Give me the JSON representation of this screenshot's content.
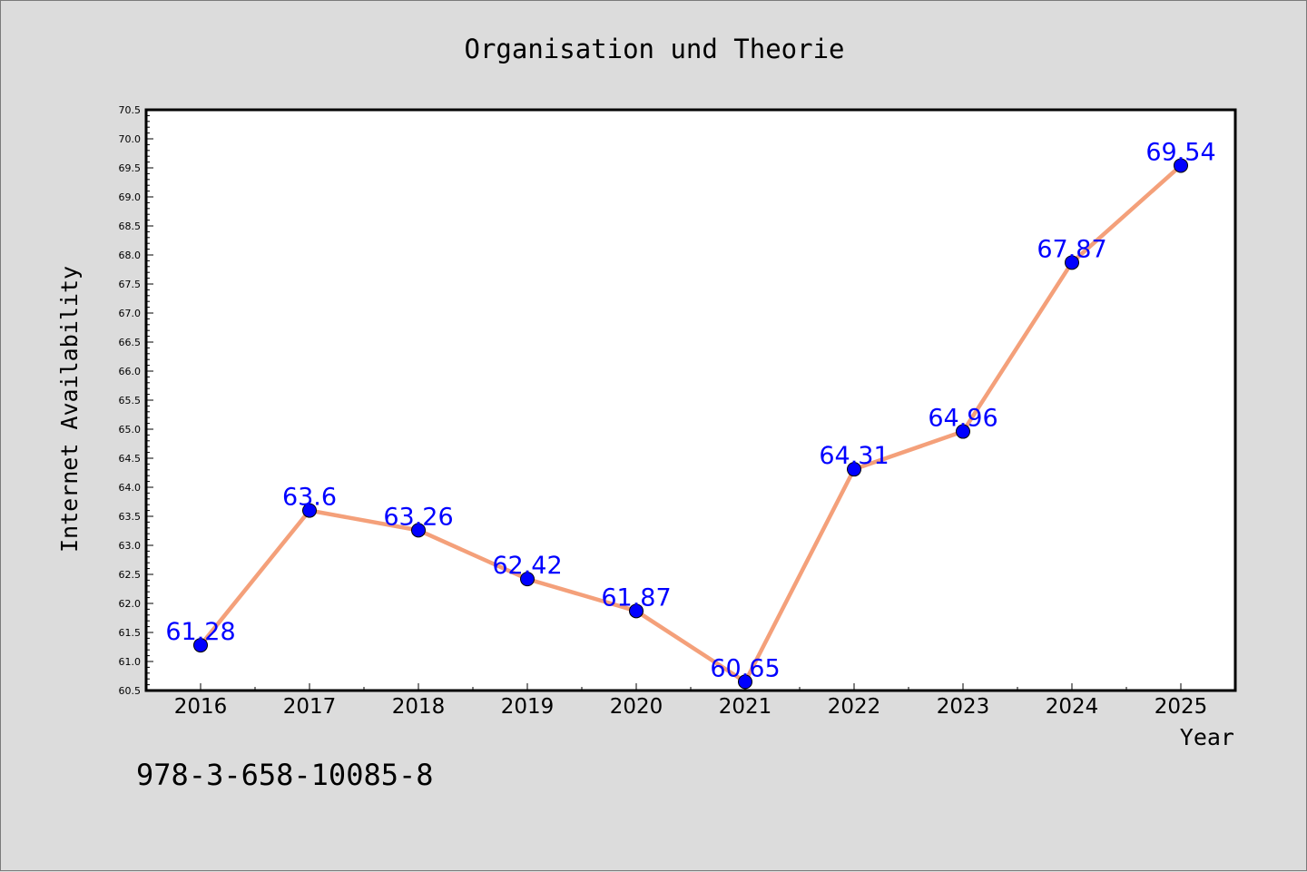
{
  "chart_data": {
    "type": "line",
    "title": "Organisation und Theorie",
    "xlabel": "Year",
    "ylabel": "Internet Availability",
    "x": [
      "2016",
      "2017",
      "2018",
      "2019",
      "2020",
      "2021",
      "2022",
      "2023",
      "2024",
      "2025"
    ],
    "series": [
      {
        "values": [
          61.28,
          63.6,
          63.26,
          62.42,
          61.87,
          60.65,
          64.31,
          64.96,
          67.87,
          69.54
        ],
        "data_labels": [
          "61.28",
          "63.6",
          "63.26",
          "62.42",
          "61.87",
          "60.65",
          "64.31",
          "64.96",
          "67.87",
          "69.54"
        ],
        "line_color": "#f4a07a",
        "marker_color": "#0000ff"
      }
    ],
    "ylim": [
      60.5,
      70.5
    ],
    "y_major_step": 0.5,
    "y_tick_labels": [
      "60.5",
      "61.0",
      "61.5",
      "62.0",
      "62.5",
      "63.0",
      "63.5",
      "64.0",
      "64.5",
      "65.0",
      "65.5",
      "66.0",
      "66.5",
      "67.0",
      "67.5",
      "68.0",
      "68.5",
      "69.0",
      "69.5",
      "70.0",
      "70.5"
    ],
    "grid": false,
    "legend": "none",
    "background_color": "#dcdcdc",
    "plot_background_color": "#ffffff"
  },
  "footer": {
    "isbn": "978-3-658-10085-8"
  }
}
